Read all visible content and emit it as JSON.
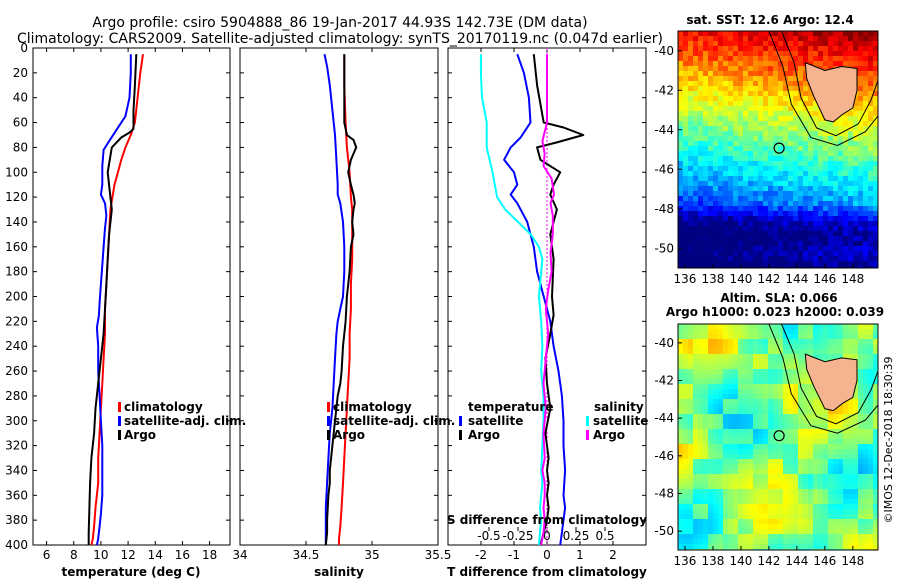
{
  "title": {
    "line1": "Argo profile: csiro 5904888_86 19-Jan-2017 44.93S 142.73E (DM data)",
    "line2": "Climatology: CARS2009. Satellite-adjusted climatology: synTS_20170119.nc (0.047d earlier)"
  },
  "colors": {
    "climatology": "#ff0000",
    "satellite_adj": "#0000ff",
    "argo": "#000000",
    "sal_satellite": "#00ffff",
    "sal_argo": "#ff00ff"
  },
  "depth_ticks": [
    "0",
    "20",
    "40",
    "60",
    "80",
    "100",
    "120",
    "140",
    "160",
    "180",
    "200",
    "220",
    "240",
    "260",
    "280",
    "300",
    "320",
    "340",
    "360",
    "380",
    "400"
  ],
  "chart_data": [
    {
      "type": "line",
      "name": "temperature-profile",
      "xlabel": "temperature (deg C)",
      "ylabel": "",
      "xlim": [
        5,
        19.5
      ],
      "ylim": [
        400,
        0
      ],
      "xticks": [
        6,
        8,
        10,
        12,
        14,
        16,
        18
      ],
      "xtick_labels": [
        "6",
        "8",
        "10",
        "12",
        "14",
        "16",
        "18"
      ],
      "legend": [
        "climatology",
        "satellite-adj. clim.",
        "Argo"
      ],
      "legend_position": "bottom-right",
      "series": [
        {
          "name": "climatology",
          "color": "#ff0000",
          "x": [
            13.1,
            12.9,
            12.7,
            12.5,
            12.2,
            11.8,
            11.5,
            11.0,
            10.7,
            10.6,
            10.5,
            10.4,
            10.3,
            10.3,
            10.2,
            10.1,
            10.0,
            9.9,
            9.8,
            9.8,
            9.6,
            9.5,
            9.4,
            9.3
          ],
          "y": [
            5,
            20,
            40,
            60,
            70,
            80,
            90,
            110,
            130,
            150,
            170,
            190,
            210,
            230,
            250,
            270,
            290,
            310,
            330,
            350,
            370,
            385,
            395,
            400
          ]
        },
        {
          "name": "satellite-adj. clim.",
          "color": "#0000ff",
          "x": [
            12.2,
            12.2,
            12.1,
            11.8,
            11.2,
            10.6,
            10.2,
            10.1,
            10.1,
            10.0,
            10.3,
            10.4,
            10.3,
            10.2,
            10.1,
            10.0,
            9.9,
            9.85,
            9.7,
            9.8,
            9.8,
            9.9,
            10.0,
            10.1,
            10.1,
            10.1,
            10.0,
            9.9,
            9.8,
            9.7
          ],
          "y": [
            5,
            20,
            40,
            55,
            65,
            75,
            82,
            95,
            110,
            118,
            125,
            135,
            145,
            160,
            175,
            190,
            205,
            215,
            225,
            240,
            260,
            280,
            300,
            320,
            340,
            360,
            375,
            385,
            395,
            400
          ]
        },
        {
          "name": "Argo",
          "color": "#000000",
          "x": [
            12.6,
            12.5,
            12.4,
            12.4,
            12.1,
            11.5,
            10.8,
            10.5,
            10.7,
            10.8,
            10.6,
            10.5,
            10.4,
            10.3,
            10.2,
            10.0,
            9.8,
            9.6,
            9.5,
            9.3,
            9.2,
            9.15,
            9.1,
            9.1
          ],
          "y": [
            5,
            30,
            50,
            65,
            68,
            72,
            80,
            100,
            120,
            130,
            150,
            170,
            190,
            210,
            230,
            250,
            270,
            290,
            310,
            330,
            350,
            370,
            390,
            400
          ]
        }
      ]
    },
    {
      "type": "line",
      "name": "salinity-profile",
      "xlabel": "salinity",
      "xlim": [
        34,
        35.5
      ],
      "ylim": [
        400,
        0
      ],
      "xticks": [
        34,
        34.5,
        35,
        35.5
      ],
      "xtick_labels": [
        "34",
        "34.5",
        "35",
        "35.5"
      ],
      "legend": [
        "climatology",
        "satellite-adj. clim.",
        "Argo"
      ],
      "legend_position": "bottom-right",
      "series": [
        {
          "name": "climatology",
          "color": "#ff0000",
          "x": [
            34.79,
            34.79,
            34.8,
            34.81,
            34.83,
            34.84,
            34.85,
            34.85,
            34.85,
            34.84,
            34.84,
            34.83,
            34.83,
            34.82,
            34.81,
            34.8,
            34.79,
            34.78,
            34.77,
            34.76,
            34.75,
            34.75
          ],
          "y": [
            5,
            30,
            60,
            80,
            100,
            120,
            130,
            150,
            170,
            190,
            210,
            230,
            250,
            270,
            290,
            310,
            330,
            350,
            370,
            385,
            395,
            400
          ]
        },
        {
          "name": "satellite-adj. clim.",
          "color": "#0000ff",
          "x": [
            34.64,
            34.66,
            34.68,
            34.7,
            34.72,
            34.73,
            34.74,
            34.74,
            34.76,
            34.78,
            34.79,
            34.79,
            34.78,
            34.76,
            34.74,
            34.73,
            34.72,
            34.71,
            34.7,
            34.68,
            34.67,
            34.66,
            34.65,
            34.65,
            34.65,
            34.65
          ],
          "y": [
            5,
            15,
            30,
            50,
            70,
            90,
            110,
            118,
            125,
            140,
            160,
            180,
            200,
            210,
            220,
            230,
            250,
            270,
            290,
            310,
            330,
            350,
            370,
            385,
            395,
            400
          ]
        },
        {
          "name": "Argo",
          "color": "#000000",
          "x": [
            34.79,
            34.79,
            34.79,
            34.81,
            34.86,
            34.88,
            34.84,
            34.82,
            34.84,
            34.86,
            34.87,
            34.86,
            34.85,
            34.86,
            34.84,
            34.83,
            34.81,
            34.8,
            34.78,
            34.77,
            34.76,
            34.74,
            34.73,
            34.72,
            34.71,
            34.7,
            34.69,
            34.68,
            34.68,
            34.67,
            34.66,
            34.66,
            34.65
          ],
          "y": [
            5,
            30,
            60,
            70,
            74,
            80,
            90,
            100,
            110,
            118,
            125,
            130,
            140,
            150,
            160,
            180,
            200,
            220,
            240,
            260,
            270,
            280,
            290,
            300,
            310,
            320,
            330,
            340,
            350,
            360,
            380,
            390,
            400
          ]
        }
      ]
    },
    {
      "type": "line",
      "name": "difference-profile",
      "xlabel": "T difference from climatology",
      "xlabel_top": "S difference from climatology",
      "xlim": [
        -3,
        3
      ],
      "ylim": [
        400,
        0
      ],
      "xticks": [
        -2,
        -1,
        0,
        1,
        2
      ],
      "xtick_labels": [
        "-2",
        "-1",
        "0",
        "1",
        "2"
      ],
      "s_xticks": [
        -0.5,
        -0.25,
        0,
        0.25,
        0.5
      ],
      "s_xtick_labels": [
        "-0.5",
        "-0.25",
        "0",
        "0.25",
        "0.5"
      ],
      "legend_left_title": "temperature",
      "legend_right_title": "salinity",
      "legend_left": [
        "satellite",
        "Argo"
      ],
      "legend_right": [
        "satellite",
        "Argo"
      ],
      "series": [
        {
          "name": "temperature satellite",
          "color": "#0000ff",
          "x": [
            -0.9,
            -0.7,
            -0.55,
            -0.5,
            -0.8,
            -1.1,
            -1.3,
            -1.0,
            -0.9,
            -1.1,
            -0.9,
            -0.6,
            -0.4,
            -0.3,
            -0.1,
            0.0,
            0.1,
            0.2,
            0.35,
            0.45,
            0.5,
            0.5,
            0.55,
            0.5,
            0.55,
            0.5,
            0.45,
            0.4
          ],
          "y": [
            5,
            20,
            40,
            60,
            72,
            80,
            90,
            100,
            110,
            118,
            125,
            140,
            160,
            180,
            200,
            210,
            220,
            240,
            260,
            280,
            300,
            320,
            340,
            360,
            370,
            380,
            390,
            400
          ]
        },
        {
          "name": "temperature Argo",
          "color": "#000000",
          "x": [
            -0.4,
            -0.3,
            -0.1,
            0.5,
            1.1,
            0.3,
            -0.3,
            -0.2,
            0.4,
            0.2,
            0.1,
            0.3,
            0.1,
            0.2,
            0.15,
            0.2,
            0.1,
            -0.05,
            0.0,
            0.1,
            -0.05,
            0.05,
            0.0,
            0.05,
            0.0,
            0.05,
            0.0,
            -0.1,
            -0.2
          ],
          "y": [
            5,
            30,
            60,
            64,
            70,
            76,
            80,
            90,
            100,
            110,
            118,
            130,
            150,
            170,
            200,
            215,
            230,
            250,
            270,
            290,
            310,
            330,
            340,
            350,
            360,
            370,
            380,
            390,
            400
          ]
        },
        {
          "name": "salinity satellite",
          "color": "#00ffff",
          "x": [
            -0.57,
            -0.57,
            -0.56,
            -0.52,
            -0.52,
            -0.47,
            -0.43,
            -0.36,
            -0.25,
            -0.14,
            -0.07,
            -0.04,
            -0.05,
            -0.07,
            -0.05,
            -0.04,
            -0.05,
            -0.03,
            -0.03,
            -0.04,
            -0.05,
            -0.04,
            -0.05,
            -0.06,
            -0.05,
            -0.06,
            -0.07
          ],
          "y": [
            5,
            20,
            40,
            60,
            80,
            100,
            120,
            130,
            140,
            150,
            160,
            170,
            180,
            200,
            220,
            240,
            260,
            280,
            300,
            320,
            340,
            350,
            360,
            370,
            380,
            390,
            400
          ]
        },
        {
          "name": "salinity Argo",
          "color": "#ff00ff",
          "x": [
            0.0,
            0.0,
            0.0,
            -0.04,
            -0.02,
            -0.03,
            0.04,
            0.06,
            0.03,
            0.05,
            0.05,
            0.03,
            0.04,
            0.01,
            -0.01,
            0.01,
            -0.01,
            -0.03,
            -0.01,
            -0.03,
            -0.02,
            -0.04,
            -0.02,
            -0.02,
            -0.03,
            -0.02,
            -0.03,
            -0.05
          ],
          "y": [
            5,
            30,
            60,
            75,
            85,
            95,
            105,
            118,
            125,
            135,
            150,
            165,
            180,
            195,
            210,
            230,
            250,
            270,
            290,
            310,
            330,
            340,
            350,
            360,
            370,
            380,
            390,
            400
          ]
        }
      ]
    },
    {
      "type": "heatmap",
      "name": "sst-map",
      "title": "sat. SST: 12.6 Argo: 12.4",
      "xlim": [
        135.5,
        149.8
      ],
      "ylim": [
        -51,
        -39
      ],
      "xticks": [
        136,
        138,
        140,
        142,
        144,
        146,
        148
      ],
      "xtick_labels": [
        "136",
        "138",
        "140",
        "142",
        "144",
        "146",
        "148"
      ],
      "yticks": [
        -40,
        -42,
        -44,
        -46,
        -48,
        -50
      ],
      "ytick_labels": [
        "-40",
        "-42",
        "-44",
        "-46",
        "-48",
        "-50"
      ],
      "argo_position": {
        "lon": 142.73,
        "lat": -44.93
      }
    },
    {
      "type": "heatmap",
      "name": "sla-map",
      "title1": "Altim. SLA: 0.066",
      "title2": "Argo h1000: 0.023 h2000: 0.039",
      "xlim": [
        135.5,
        149.8
      ],
      "ylim": [
        -51,
        -39
      ],
      "xticks": [
        136,
        138,
        140,
        142,
        144,
        146,
        148
      ],
      "xtick_labels": [
        "136",
        "138",
        "140",
        "142",
        "144",
        "146",
        "148"
      ],
      "yticks": [
        -40,
        -42,
        -44,
        -46,
        -48,
        -50
      ],
      "ytick_labels": [
        "-40",
        "-42",
        "-44",
        "-46",
        "-48",
        "-50"
      ],
      "argo_position": {
        "lon": 142.73,
        "lat": -44.93
      }
    }
  ],
  "footer": "©IMOS 12-Dec-2018 18:30:39"
}
